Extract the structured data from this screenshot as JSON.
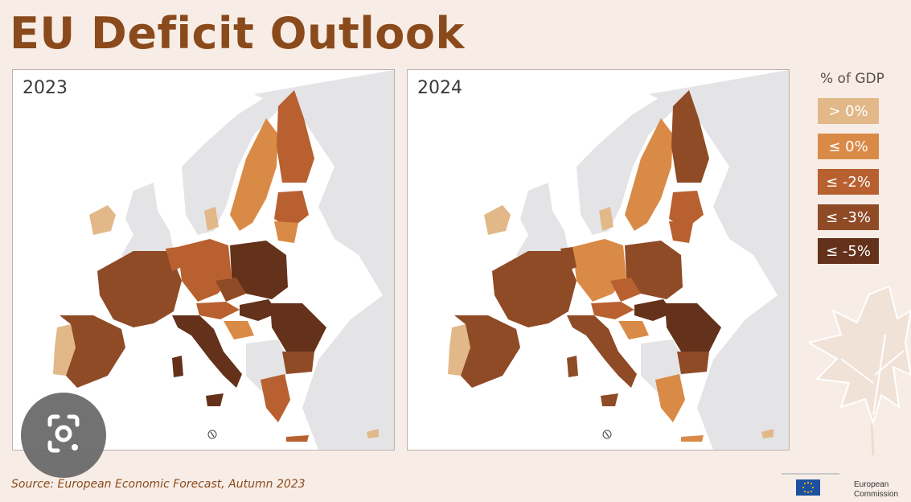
{
  "title": "EU Deficit Outlook",
  "panels": [
    {
      "year": "2023"
    },
    {
      "year": "2024"
    }
  ],
  "legend": {
    "title": "% of GDP",
    "items": [
      {
        "label": "> 0%",
        "color": "#e2b888"
      },
      {
        "label": "≤ 0%",
        "color": "#da8a47"
      },
      {
        "label": "≤ -2%",
        "color": "#b8602f"
      },
      {
        "label": "≤ -3%",
        "color": "#8f4a26"
      },
      {
        "label": "≤ -5%",
        "color": "#64311a"
      }
    ]
  },
  "source": "Source: European Economic Forecast, Autumn 2023",
  "logo": {
    "line1": "European",
    "line2": "Commission"
  },
  "icons": [
    "camera-lens-icon",
    "compass-icon",
    "maple-leaf-icon",
    "eu-flag-icon"
  ]
}
